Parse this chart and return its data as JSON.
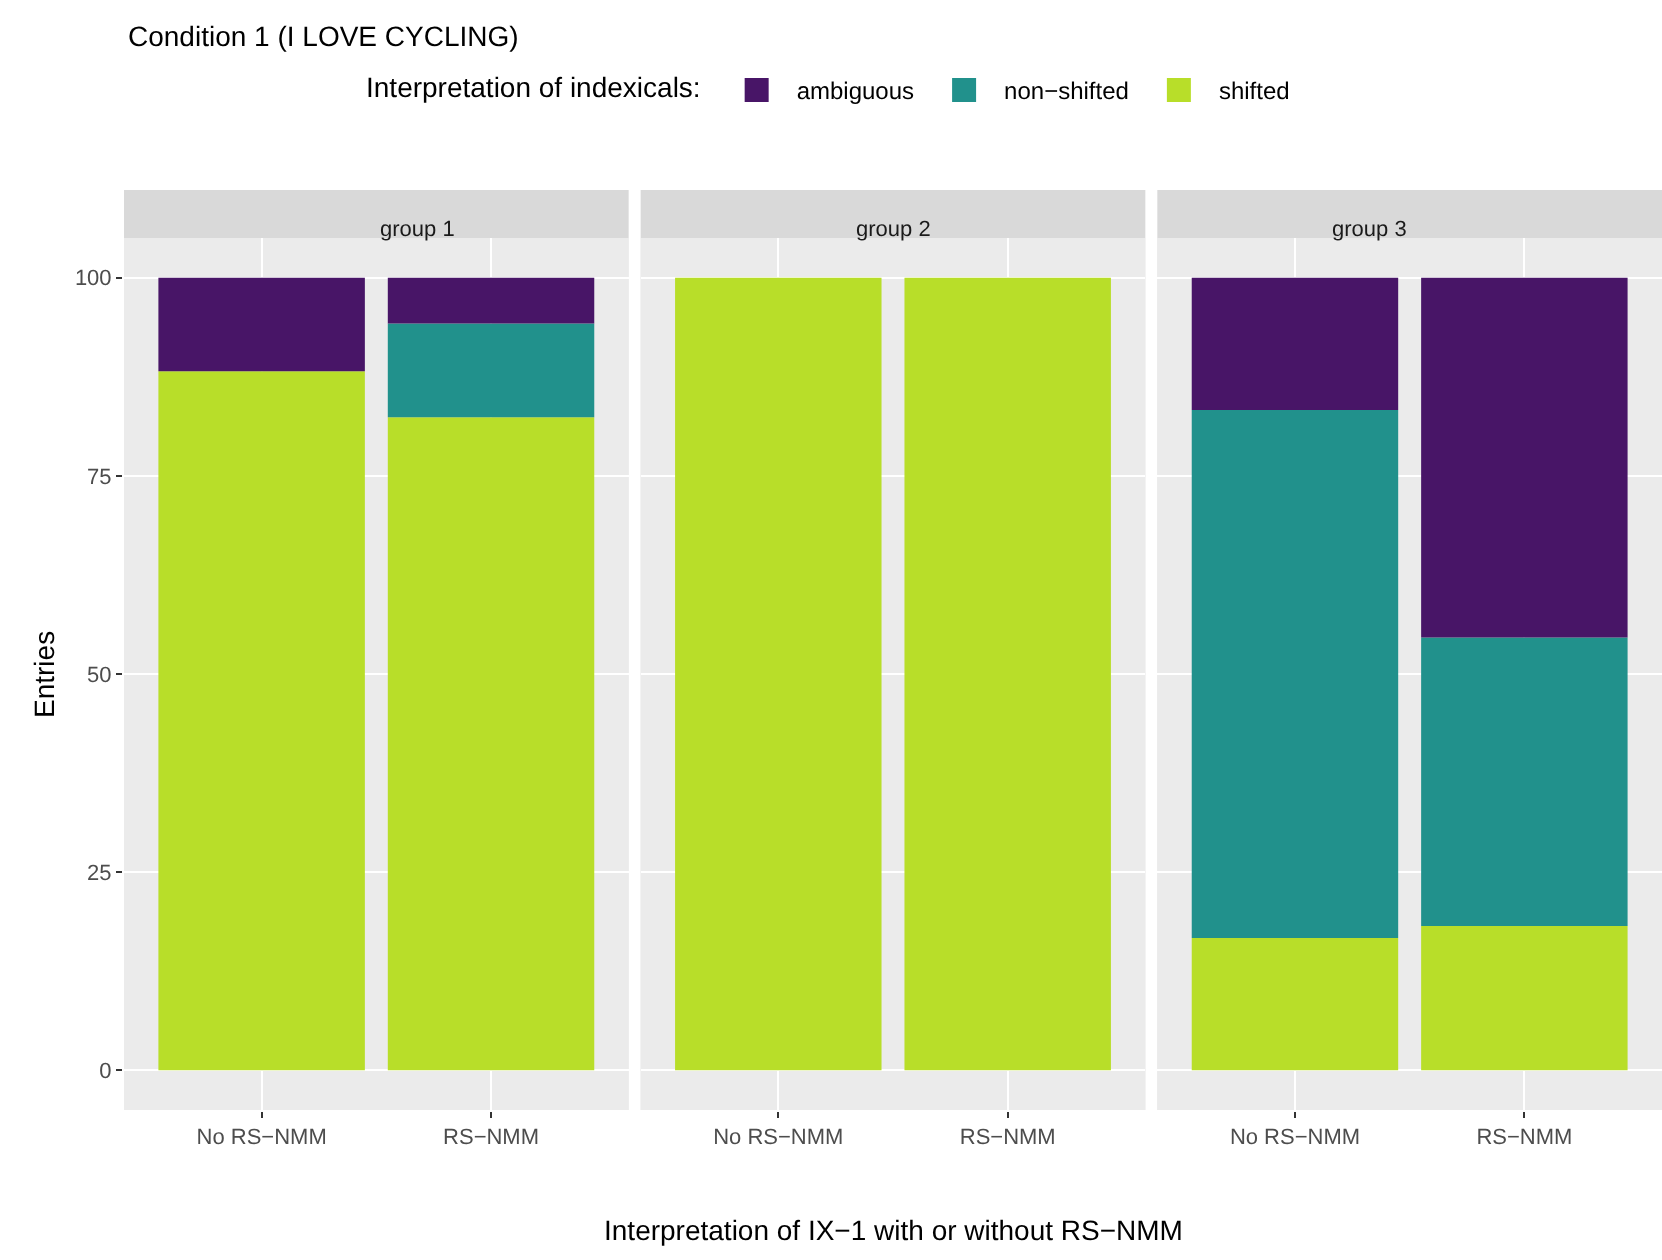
{
  "chart_data": [
    {
      "type": "bar",
      "stacked": true,
      "title": "group 1",
      "annotations": [
        "Condition 1 (I LOVE CYCLING)"
      ],
      "ylabel": "Entries",
      "legend_title": "Interpretation of indexicals:",
      "legend": "top",
      "grid": true,
      "categories": [
        "No RS−NMM",
        "RS−NMM"
      ],
      "ylim": [
        -5,
        105
      ],
      "yticks": [
        0,
        25,
        50,
        75,
        100
      ],
      "series": [
        {
          "name": "shifted",
          "color": "#b8de29",
          "values": [
            88.2,
            82.4
          ]
        },
        {
          "name": "non−shifted",
          "color": "#21918c",
          "values": [
            null,
            11.8
          ]
        },
        {
          "name": "ambiguous",
          "color": "#481567",
          "values": [
            11.8,
            5.8
          ]
        }
      ]
    },
    {
      "type": "bar",
      "stacked": true,
      "title": "group 2",
      "xlabel": "Interpretation of IX−1 with or without RS−NMM",
      "grid": true,
      "tick_labels": "x",
      "categories": [
        "No RS−NMM",
        "RS−NMM"
      ],
      "ylim": [
        -5,
        105
      ],
      "series": [
        {
          "color": "#b8de29",
          "values": [
            100,
            100
          ]
        }
      ]
    },
    {
      "type": "bar",
      "stacked": true,
      "title": "group 3",
      "grid": true,
      "tick_labels": "x",
      "categories": [
        "No RS−NMM",
        "RS−NMM"
      ],
      "ylim": [
        -5,
        105
      ],
      "series": [
        {
          "color": "#b8de29",
          "values": [
            16.7,
            18.2
          ]
        },
        {
          "color": "#21918c",
          "values": [
            66.6,
            36.4
          ]
        },
        {
          "color": "#481567",
          "values": [
            16.7,
            45.4
          ]
        }
      ]
    }
  ]
}
